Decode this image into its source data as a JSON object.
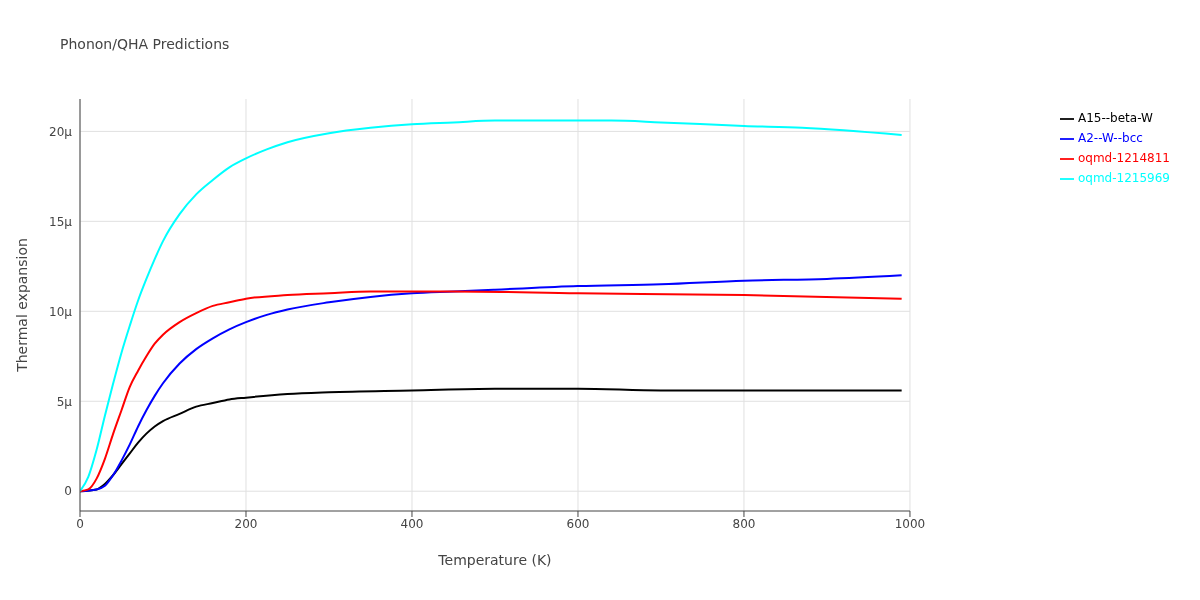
{
  "chart_data": {
    "type": "line",
    "title": "Phonon/QHA Predictions",
    "xlabel": "Temperature (K)",
    "ylabel": "Thermal expansion",
    "xlim": [
      0,
      1000
    ],
    "xticks": [
      0,
      200,
      400,
      600,
      800,
      1000
    ],
    "ylim": [
      -1.1,
      21.8
    ],
    "yticks": [
      0,
      {
        "value": 5,
        "label": "5μ"
      },
      {
        "value": 10,
        "label": "10μ"
      },
      {
        "value": 15,
        "label": "15μ"
      },
      {
        "value": 20,
        "label": "20μ"
      }
    ],
    "grid": true,
    "legend": "top right",
    "marker": "none",
    "series": [
      {
        "name": "A15--beta-W",
        "color": "#000000",
        "x": [
          0,
          20,
          30,
          40,
          50,
          60,
          70,
          80,
          90,
          100,
          120,
          140,
          160,
          180,
          200,
          250,
          300,
          400,
          500,
          600,
          700,
          800,
          990
        ],
        "values": [
          0,
          0.1,
          0.4,
          0.9,
          1.5,
          2.1,
          2.7,
          3.2,
          3.6,
          3.9,
          4.3,
          4.7,
          4.9,
          5.1,
          5.2,
          5.4,
          5.5,
          5.6,
          5.7,
          5.7,
          5.6,
          5.6,
          5.6
        ]
      },
      {
        "name": "A2--W--bcc",
        "color": "#0000ff",
        "x": [
          0,
          20,
          30,
          40,
          50,
          60,
          70,
          80,
          90,
          100,
          120,
          140,
          160,
          180,
          200,
          225,
          250,
          300,
          350,
          400,
          450,
          500,
          600,
          700,
          800,
          900,
          990
        ],
        "values": [
          0,
          0.1,
          0.3,
          0.9,
          1.7,
          2.6,
          3.6,
          4.5,
          5.3,
          6,
          7.1,
          7.9,
          8.5,
          9,
          9.4,
          9.8,
          10.1,
          10.5,
          10.8,
          11,
          11.1,
          11.2,
          11.4,
          11.5,
          11.7,
          11.8,
          12
        ]
      },
      {
        "name": "oqmd-1214811",
        "color": "#ff0000",
        "x": [
          0,
          10,
          20,
          30,
          40,
          50,
          60,
          70,
          80,
          90,
          100,
          120,
          140,
          160,
          180,
          200,
          250,
          300,
          350,
          450,
          600,
          800,
          990
        ],
        "values": [
          0,
          0.1,
          0.7,
          1.8,
          3.2,
          4.5,
          5.8,
          6.7,
          7.5,
          8.2,
          8.7,
          9.4,
          9.9,
          10.3,
          10.5,
          10.7,
          10.9,
          11,
          11.1,
          11.1,
          11,
          10.9,
          10.7
        ]
      },
      {
        "name": "oqmd-1215969",
        "color": "#00ffff",
        "x": [
          0,
          10,
          20,
          30,
          40,
          50,
          60,
          70,
          80,
          90,
          100,
          120,
          140,
          160,
          180,
          200,
          225,
          250,
          300,
          350,
          400,
          450,
          500,
          560,
          640,
          700,
          800,
          870,
          990
        ],
        "values": [
          0,
          0.8,
          2.3,
          4.2,
          6,
          7.7,
          9.2,
          10.6,
          11.8,
          12.9,
          13.9,
          15.4,
          16.5,
          17.3,
          18,
          18.5,
          19,
          19.4,
          19.9,
          20.2,
          20.4,
          20.5,
          20.6,
          20.6,
          20.6,
          20.5,
          20.3,
          20.2,
          19.8
        ]
      }
    ]
  }
}
